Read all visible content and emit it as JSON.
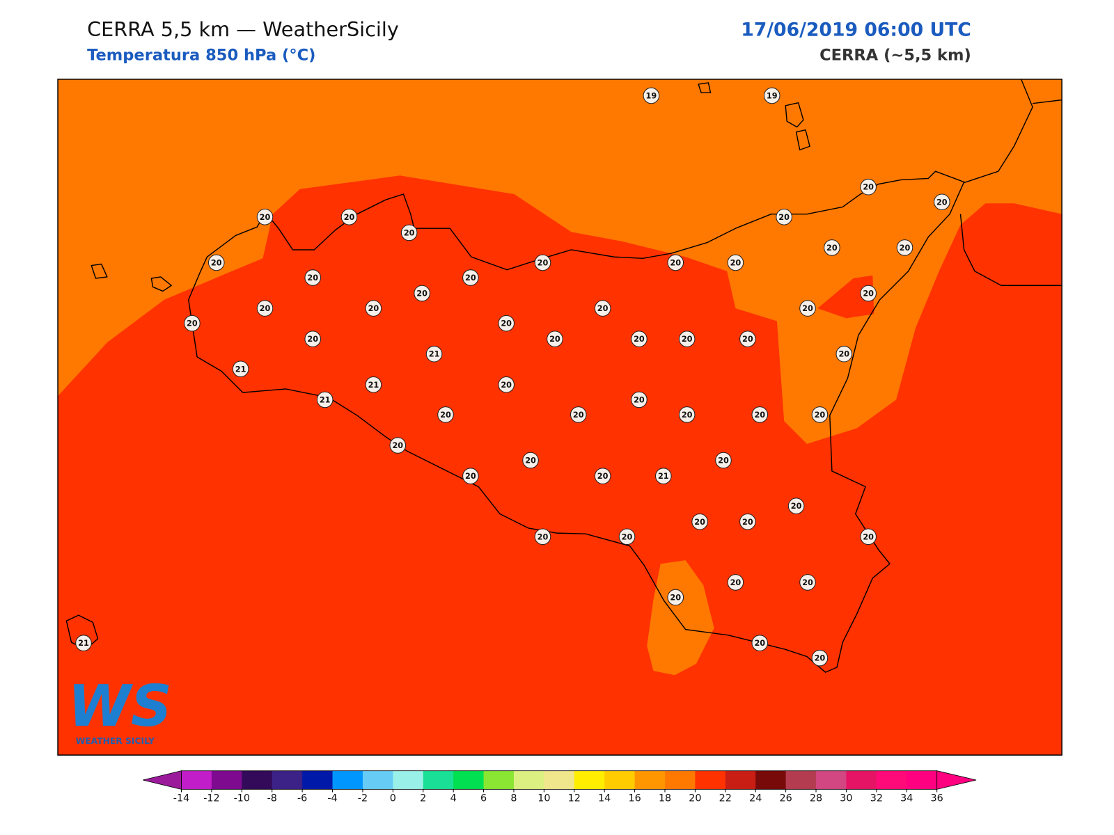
{
  "header": {
    "title": "CERRA 5,5 km — WeatherSicily",
    "subtitle": "Temperatura 850 hPa (°C)",
    "datetime": "17/06/2019 06:00 UTC",
    "model": "CERRA (~5,5 km)"
  },
  "stations": {
    "values": [
      19,
      19,
      20,
      20,
      20,
      20,
      20,
      20,
      20,
      20,
      20,
      20,
      20,
      20,
      20,
      20,
      20,
      20,
      20,
      20,
      20,
      20,
      20,
      20,
      20,
      20,
      20,
      20,
      20,
      21,
      20,
      21,
      21,
      20,
      21,
      20,
      20,
      20,
      20,
      20,
      20,
      20,
      20,
      20,
      20,
      20,
      21,
      20,
      20,
      20,
      20,
      20,
      20,
      20,
      20,
      20,
      20,
      20,
      21
    ]
  },
  "logo": {
    "mark": "WS",
    "name": "WEATHER SICILY"
  },
  "colorbar": {
    "ticks": [
      -14,
      -12,
      -10,
      -8,
      -6,
      -4,
      -2,
      0,
      2,
      4,
      6,
      8,
      10,
      12,
      14,
      16,
      18,
      20,
      22,
      24,
      26,
      28,
      30,
      32,
      34,
      36
    ],
    "colors": [
      "#c11dc9",
      "#7d0a8f",
      "#330a5a",
      "#3c2187",
      "#0019a8",
      "#0096ff",
      "#66ccf5",
      "#99f0e8",
      "#19e096",
      "#00e050",
      "#8ae632",
      "#dcf082",
      "#f0e68c",
      "#ffee00",
      "#ffcc00",
      "#ff9600",
      "#ff7800",
      "#ff3200",
      "#c81e14",
      "#780a0a",
      "#b43c50",
      "#d24682",
      "#e61464",
      "#ff0a78",
      "#ff0080"
    ],
    "under": "#9b1a9b",
    "over": "#ff0080"
  }
}
